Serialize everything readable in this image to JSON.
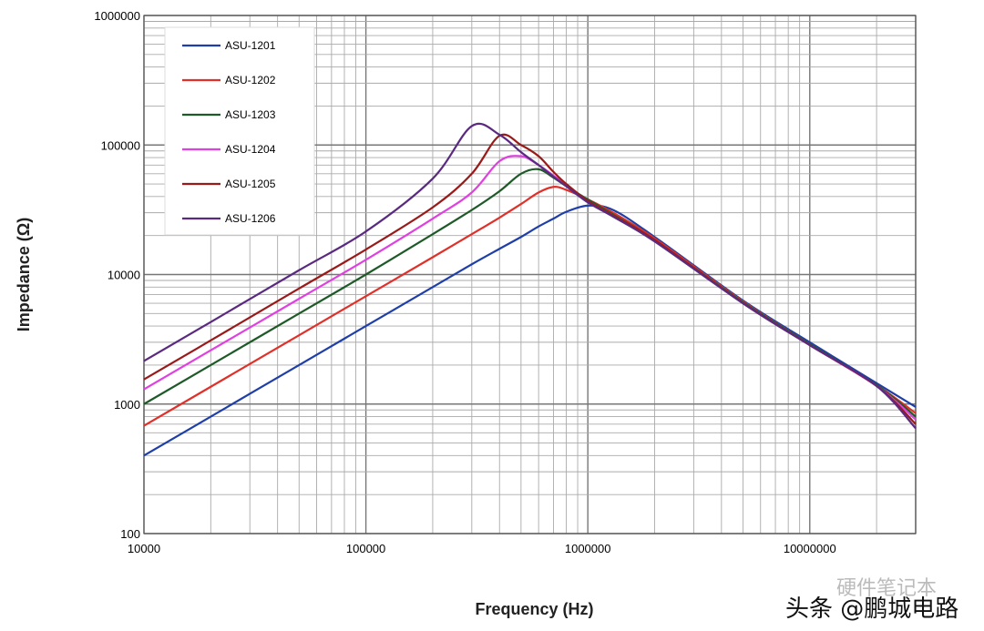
{
  "chart_data": {
    "type": "line",
    "xlabel": "Frequency (Hz)",
    "ylabel": "Impedance (Ω)",
    "xscale": "log",
    "yscale": "log",
    "xlim": [
      10000,
      30000000
    ],
    "ylim": [
      100,
      1000000
    ],
    "x_ticks": [
      "10000",
      "100000",
      "1000000",
      "10000000"
    ],
    "y_ticks": [
      "100",
      "1000",
      "10000",
      "100000",
      "1000000"
    ],
    "grid": true,
    "legend_position": "top-left",
    "x": [
      10000,
      20000,
      50000,
      100000,
      200000,
      300000,
      400000,
      500000,
      600000,
      700000,
      800000,
      1000000,
      1300000,
      2000000,
      5000000,
      10000000,
      20000000,
      30000000
    ],
    "series": [
      {
        "name": "ASU-1201",
        "color": "#1f3fa8",
        "values": [
          400,
          800,
          2000,
          4000,
          8000,
          12000,
          15800,
          19500,
          23500,
          27000,
          30500,
          34000,
          31500,
          19500,
          6300,
          3000,
          1450,
          950
        ]
      },
      {
        "name": "ASU-1202",
        "color": "#e0302a",
        "values": [
          680,
          1360,
          3400,
          6800,
          13600,
          20500,
          27500,
          35000,
          43000,
          47500,
          45000,
          38000,
          30000,
          19000,
          6200,
          2900,
          1400,
          850
        ]
      },
      {
        "name": "ASU-1203",
        "color": "#1e5a28",
        "values": [
          1000,
          2000,
          5000,
          10000,
          20500,
          31500,
          44000,
          60000,
          65000,
          56000,
          48000,
          38000,
          29000,
          18500,
          6100,
          2900,
          1400,
          800
        ]
      },
      {
        "name": "ASU-1204",
        "color": "#e040e0",
        "values": [
          1300,
          2600,
          6500,
          13000,
          27000,
          43000,
          75000,
          82000,
          70000,
          58000,
          49000,
          37000,
          28500,
          18500,
          6000,
          2850,
          1380,
          760
        ]
      },
      {
        "name": "ASU-1205",
        "color": "#9a1a1a",
        "values": [
          1550,
          3100,
          7800,
          15600,
          33000,
          60000,
          118000,
          100000,
          82000,
          62000,
          50000,
          37000,
          28500,
          18500,
          6000,
          2850,
          1380,
          700
        ]
      },
      {
        "name": "ASU-1206",
        "color": "#5a2a80",
        "values": [
          2150,
          4300,
          10800,
          21500,
          55000,
          140000,
          120000,
          88000,
          70000,
          57000,
          48000,
          36000,
          28000,
          18000,
          6000,
          2850,
          1380,
          650
        ]
      }
    ]
  },
  "watermark": {
    "line1": "硬件笔记本",
    "line2": "头条 @鹏城电路"
  }
}
